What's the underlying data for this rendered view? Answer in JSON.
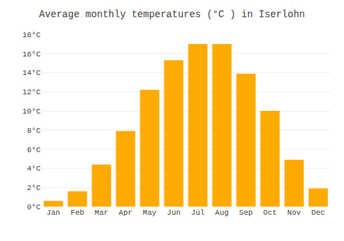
{
  "chart_data": {
    "type": "bar",
    "title": "Average monthly temperatures (°C ) in Iserlohn",
    "categories": [
      "Jan",
      "Feb",
      "Mar",
      "Apr",
      "May",
      "Jun",
      "Jul",
      "Aug",
      "Sep",
      "Oct",
      "Nov",
      "Dec"
    ],
    "values": [
      0.6,
      1.6,
      4.4,
      7.9,
      12.2,
      15.3,
      17.0,
      17.0,
      13.9,
      10.0,
      4.9,
      1.9
    ],
    "color": "#FFAA00",
    "ylim": [
      0,
      18
    ],
    "yticks": [
      {
        "value": 0,
        "label": "0°C"
      },
      {
        "value": 2,
        "label": "2°C"
      },
      {
        "value": 4,
        "label": "4°C"
      },
      {
        "value": 6,
        "label": "6°C"
      },
      {
        "value": 8,
        "label": "8°C"
      },
      {
        "value": 10,
        "label": "10°C"
      },
      {
        "value": 12,
        "label": "12°C"
      },
      {
        "value": 14,
        "label": "14°C"
      },
      {
        "value": 16,
        "label": "16°C"
      },
      {
        "value": 18,
        "label": "18°C"
      }
    ],
    "grid": true
  }
}
